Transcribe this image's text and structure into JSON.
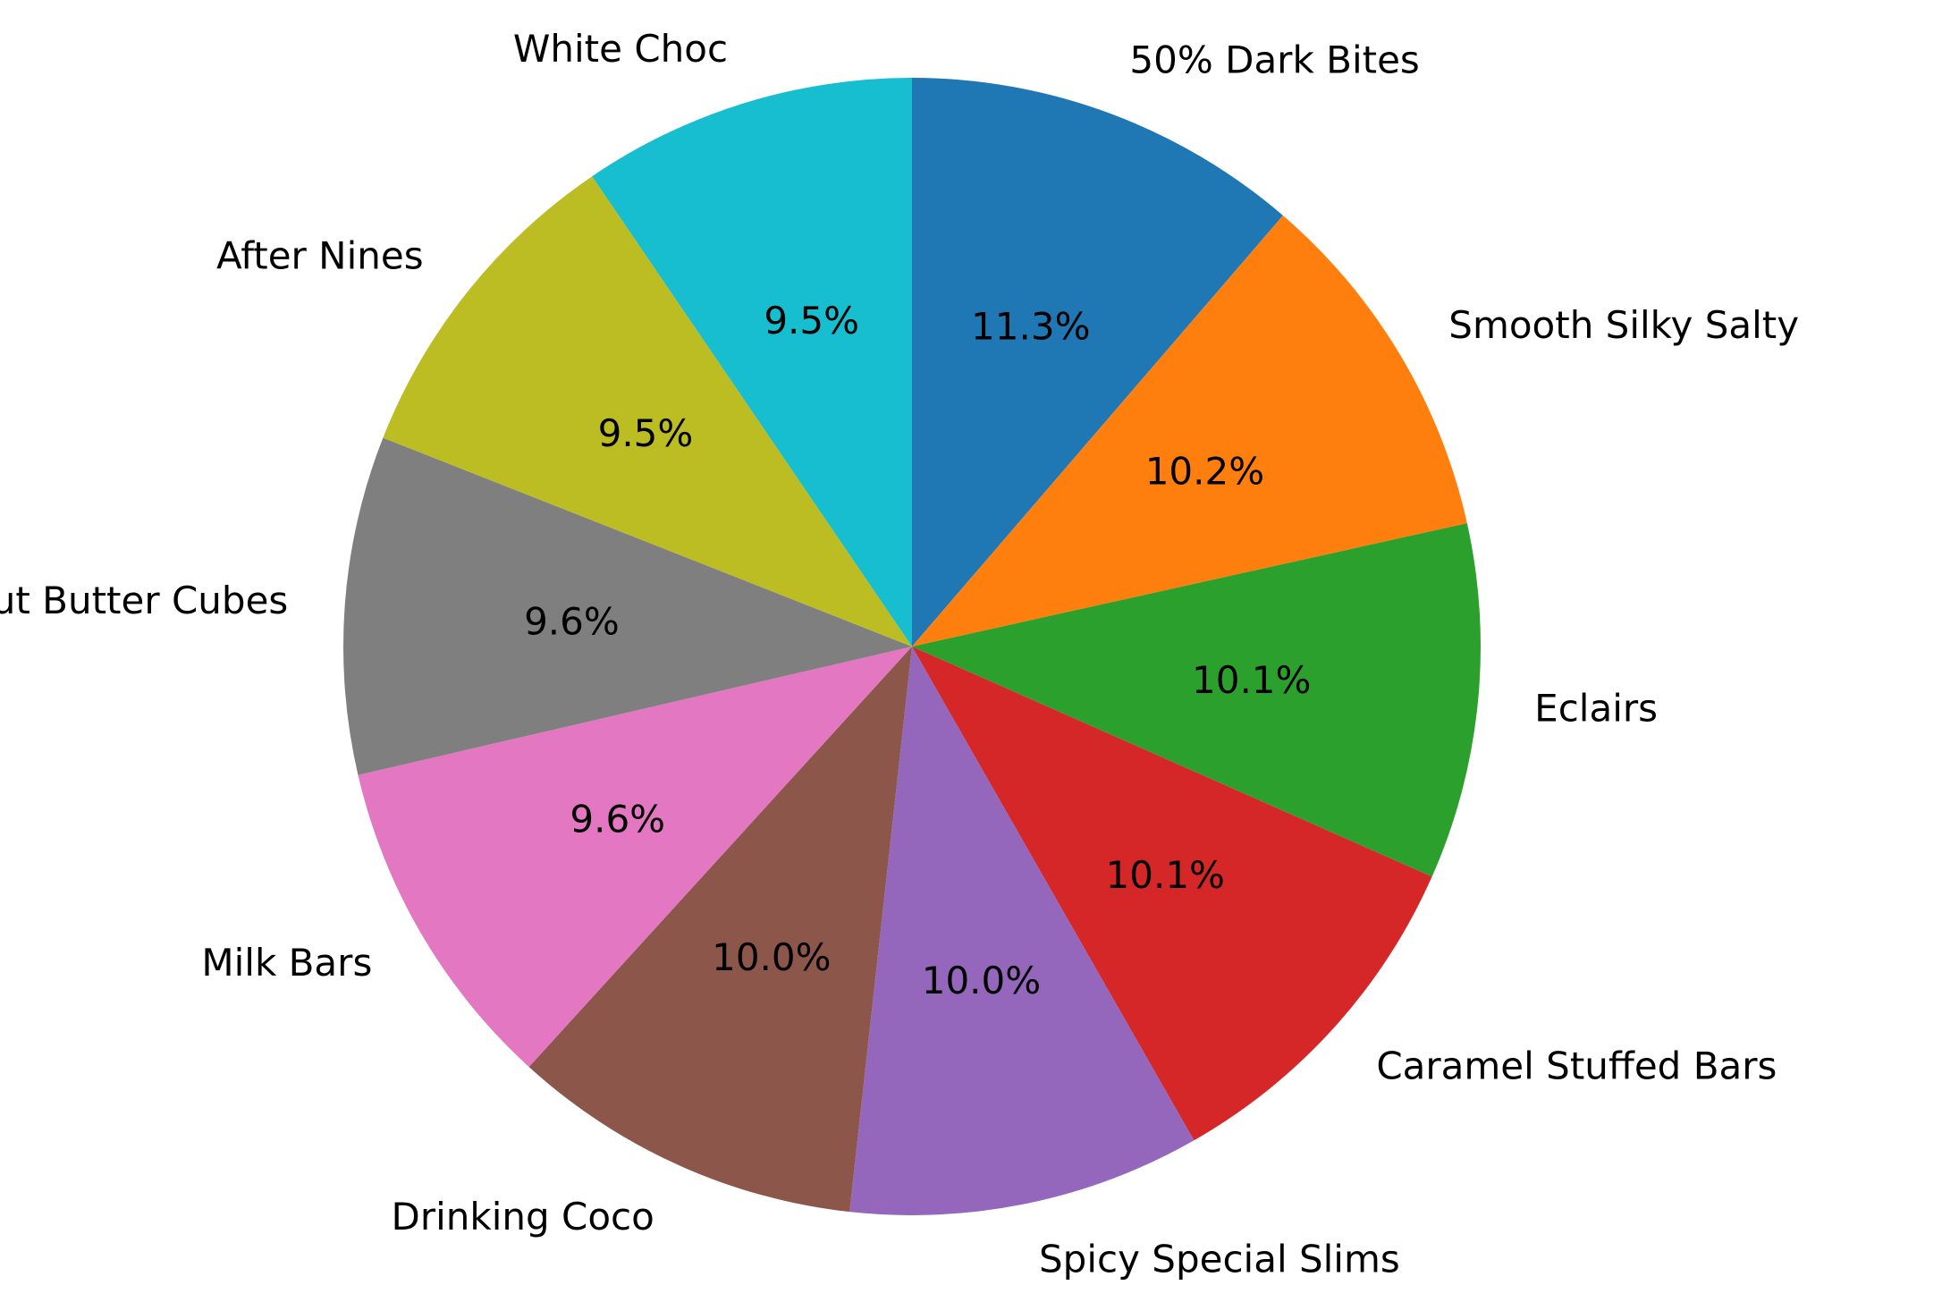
{
  "chart_data": {
    "type": "pie",
    "start_angle_deg": 90,
    "direction": "clockwise",
    "categories": [
      "50% Dark Bites",
      "Smooth Silky Salty",
      "Eclairs",
      "Caramel Stuffed Bars",
      "Spicy Special Slims",
      "Drinking Coco",
      "Milk Bars",
      "Peanut Butter Cubes",
      "After Nines",
      "White Choc"
    ],
    "values": [
      11.3,
      10.2,
      10.1,
      10.1,
      10.0,
      10.0,
      9.6,
      9.6,
      9.5,
      9.5
    ],
    "percent_labels": [
      "11.3%",
      "10.2%",
      "10.1%",
      "10.1%",
      "10.0%",
      "10.0%",
      "9.6%",
      "9.6%",
      "9.5%",
      "9.5%"
    ],
    "colors": [
      "#1f77b4",
      "#ff7f0e",
      "#2ca02c",
      "#d62728",
      "#9467bd",
      "#8c564b",
      "#e377c2",
      "#7f7f7f",
      "#bcbd22",
      "#17becf"
    ],
    "title": "",
    "legend": "none"
  }
}
